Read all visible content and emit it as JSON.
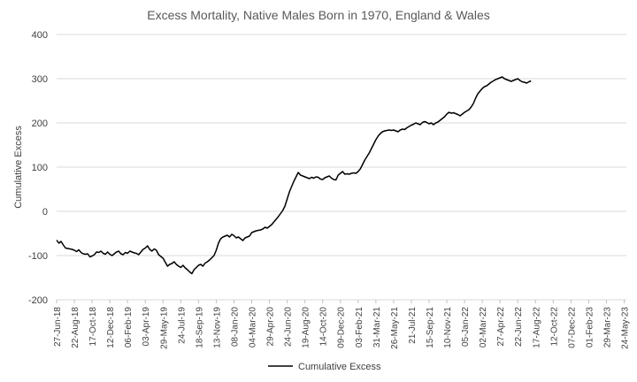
{
  "chart_data": {
    "type": "line",
    "title": "Excess Mortality, Native Males Born in 1970, England & Wales",
    "xlabel": "",
    "ylabel": "Cumulative Excess",
    "ylim": [
      -200,
      400
    ],
    "yticks": [
      -200,
      -100,
      0,
      100,
      200,
      300,
      400
    ],
    "grid": true,
    "legend_position": "bottom",
    "line_color": "#000000",
    "x_tick_labels": [
      "27-Jun-18",
      "22-Aug-18",
      "17-Oct-18",
      "12-Dec-18",
      "06-Feb-19",
      "03-Apr-19",
      "29-May-19",
      "24-Jul-19",
      "18-Sep-19",
      "13-Nov-19",
      "08-Jan-20",
      "04-Mar-20",
      "29-Apr-20",
      "24-Jun-20",
      "19-Aug-20",
      "14-Oct-20",
      "09-Dec-20",
      "03-Feb-21",
      "31-Mar-21",
      "26-May-21",
      "21-Jul-21",
      "15-Sep-21",
      "10-Nov-21",
      "05-Jan-22",
      "02-Mar-22",
      "27-Apr-22",
      "22-Jun-22",
      "17-Aug-22",
      "12-Oct-22",
      "07-Dec-22",
      "01-Feb-23",
      "29-Mar-23",
      "24-May-23"
    ],
    "series": [
      {
        "name": "Cumulative Excess",
        "x_start": "27-Jun-18",
        "interval": "weekly",
        "values": [
          -65,
          -72,
          -68,
          -76,
          -83,
          -84,
          -85,
          -86,
          -88,
          -91,
          -87,
          -93,
          -96,
          -97,
          -96,
          -103,
          -101,
          -98,
          -92,
          -93,
          -90,
          -95,
          -97,
          -92,
          -97,
          -100,
          -96,
          -92,
          -90,
          -96,
          -98,
          -93,
          -95,
          -90,
          -92,
          -94,
          -95,
          -98,
          -92,
          -86,
          -83,
          -78,
          -86,
          -90,
          -85,
          -88,
          -98,
          -102,
          -106,
          -115,
          -124,
          -120,
          -118,
          -114,
          -120,
          -124,
          -127,
          -122,
          -128,
          -132,
          -137,
          -141,
          -132,
          -127,
          -122,
          -120,
          -124,
          -117,
          -114,
          -110,
          -105,
          -100,
          -88,
          -72,
          -62,
          -58,
          -56,
          -54,
          -58,
          -52,
          -55,
          -60,
          -58,
          -62,
          -66,
          -60,
          -58,
          -56,
          -48,
          -46,
          -44,
          -43,
          -42,
          -40,
          -36,
          -38,
          -34,
          -30,
          -24,
          -18,
          -12,
          -5,
          2,
          12,
          28,
          44,
          56,
          68,
          78,
          88,
          82,
          80,
          78,
          76,
          74,
          77,
          75,
          78,
          77,
          73,
          72,
          76,
          78,
          80,
          75,
          72,
          71,
          82,
          86,
          90,
          84,
          85,
          84,
          86,
          87,
          86,
          90,
          96,
          106,
          116,
          124,
          132,
          142,
          152,
          162,
          170,
          176,
          180,
          182,
          183,
          184,
          183,
          184,
          182,
          180,
          184,
          186,
          185,
          189,
          192,
          195,
          197,
          200,
          198,
          196,
          201,
          203,
          201,
          198,
          200,
          196,
          200,
          202,
          206,
          210,
          214,
          220,
          224,
          222,
          223,
          221,
          219,
          216,
          220,
          224,
          227,
          230,
          236,
          244,
          256,
          266,
          272,
          278,
          282,
          284,
          288,
          292,
          295,
          298,
          300,
          302,
          304,
          300,
          298,
          296,
          294,
          296,
          298,
          300,
          296,
          293,
          292,
          290,
          293,
          295
        ]
      }
    ]
  }
}
